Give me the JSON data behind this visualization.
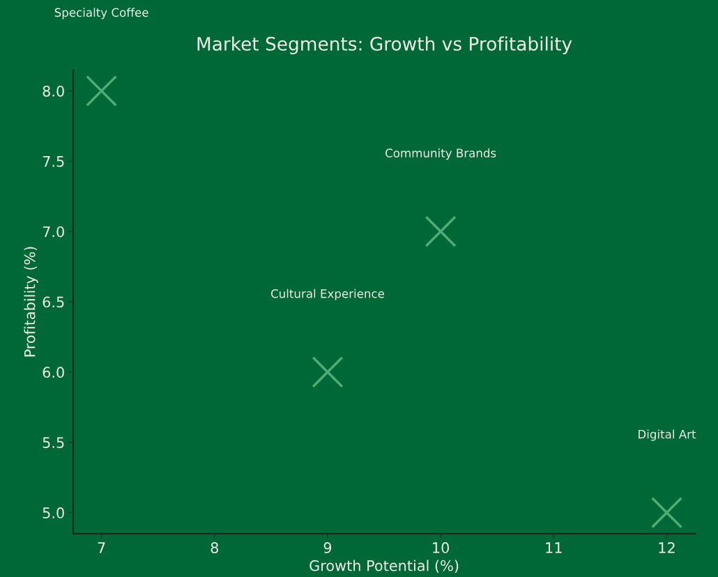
{
  "chart_data": {
    "type": "scatter",
    "title": "Market Segments: Growth vs Profitability",
    "xlabel": "Growth Potential (%)",
    "ylabel": "Profitability (%)",
    "x": [
      7,
      9,
      10,
      12
    ],
    "series": [
      {
        "color": "#5db882",
        "values": [
          8.0,
          6.0,
          7.0,
          5.0
        ]
      }
    ],
    "annotations": [
      "Specialty Coffee",
      "Cultural Experience",
      "Community Brands",
      "Digital Art"
    ],
    "xlim": [
      6.75,
      12.25
    ],
    "xticks": [
      7,
      8,
      9,
      10,
      11,
      12
    ],
    "ylim": [
      4.85,
      8.15
    ],
    "yticks": [
      {
        "value": 5.0,
        "label": "5.0"
      },
      {
        "value": 5.5,
        "label": "5.5"
      },
      {
        "value": 6.0,
        "label": "6.0"
      },
      {
        "value": 6.5,
        "label": "6.5"
      },
      {
        "value": 7.0,
        "label": "7.0"
      },
      {
        "value": 7.5,
        "label": "7.5"
      },
      {
        "value": 8.0,
        "label": "8.0"
      }
    ],
    "marker": "cross",
    "grid": false
  }
}
